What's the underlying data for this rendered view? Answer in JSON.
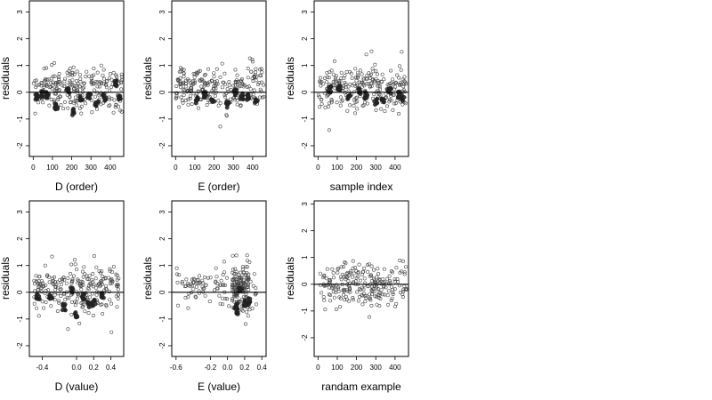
{
  "figure": {
    "ylabel": "residuals",
    "colors": {
      "frame": "#000000",
      "point_stroke": "#444444",
      "dark_point": "#222222",
      "background": "#ffffff"
    }
  },
  "chart_data": [
    {
      "type": "scatter",
      "xlabel": "D (order)",
      "ylabel": "residuals",
      "xlim": [
        -20,
        470
      ],
      "ylim": [
        -2.4,
        3.45
      ],
      "xticks": [
        0,
        100,
        200,
        300,
        400
      ],
      "xtick_labels": [
        "0",
        "100",
        "200",
        "300",
        "400"
      ],
      "yticks": [
        -2,
        -1,
        0,
        1,
        2,
        3
      ],
      "ytick_labels": [
        "-2",
        "-1",
        "0",
        "1",
        "2",
        "3"
      ],
      "hline": 0,
      "grid": false,
      "legend": "none",
      "point_style": "open circles with dark filled clusters",
      "highlight_points": [
        [
          20,
          -0.15
        ],
        [
          50,
          -0.1
        ],
        [
          75,
          -0.12
        ],
        [
          120,
          -0.55
        ],
        [
          180,
          0.05
        ],
        [
          210,
          -0.75
        ],
        [
          250,
          -0.2
        ],
        [
          290,
          -0.2
        ],
        [
          330,
          -0.45
        ],
        [
          370,
          -0.2
        ],
        [
          430,
          0.35
        ],
        [
          450,
          -0.15
        ]
      ]
    },
    {
      "type": "scatter",
      "xlabel": "E (order)",
      "ylabel": "residuals",
      "xlim": [
        -20,
        470
      ],
      "ylim": [
        -2.4,
        3.45
      ],
      "xticks": [
        0,
        100,
        200,
        300,
        400
      ],
      "xtick_labels": [
        "0",
        "100",
        "200",
        "300",
        "400"
      ],
      "yticks": [
        -2,
        -1,
        0,
        1,
        2,
        3
      ],
      "ytick_labels": [
        "-2",
        "-1",
        "0",
        "1",
        "2",
        "3"
      ],
      "hline": 0,
      "grid": false,
      "legend": "none",
      "point_style": "open circles with dark filled clusters",
      "highlight_points": [
        [
          110,
          -0.3
        ],
        [
          150,
          -0.1
        ],
        [
          195,
          -0.25
        ],
        [
          270,
          -0.45
        ],
        [
          310,
          0.0
        ],
        [
          345,
          -0.15
        ],
        [
          375,
          -0.2
        ],
        [
          420,
          -0.3
        ]
      ]
    },
    {
      "type": "scatter",
      "xlabel": "sample index",
      "ylabel": "residuals",
      "xlim": [
        -20,
        470
      ],
      "ylim": [
        -2.4,
        3.45
      ],
      "xticks": [
        0,
        100,
        200,
        300,
        400
      ],
      "xtick_labels": [
        "0",
        "100",
        "200",
        "300",
        "400"
      ],
      "yticks": [
        -2,
        -1,
        0,
        1,
        2,
        3
      ],
      "ytick_labels": [
        "-2",
        "-1",
        "0",
        "1",
        "2",
        "3"
      ],
      "hline": 0,
      "grid": false,
      "legend": "none",
      "point_style": "open circles with dark filled clusters",
      "highlight_points": [
        [
          60,
          0.1
        ],
        [
          110,
          0.15
        ],
        [
          160,
          -0.15
        ],
        [
          215,
          0.05
        ],
        [
          250,
          -0.1
        ],
        [
          300,
          -0.35
        ],
        [
          335,
          -0.3
        ],
        [
          370,
          0.05
        ],
        [
          420,
          -0.1
        ],
        [
          440,
          -0.2
        ]
      ]
    },
    {
      "type": "scatter",
      "xlabel": "D (value)",
      "ylabel": "residuals",
      "xlim": [
        -0.55,
        0.55
      ],
      "ylim": [
        -2.4,
        3.45
      ],
      "xticks": [
        -0.4,
        0.0,
        0.2,
        0.4
      ],
      "xtick_labels": [
        "-0.4",
        "0.0",
        "0.2",
        "0.4"
      ],
      "yticks": [
        -2,
        -1,
        0,
        1,
        2,
        3
      ],
      "ytick_labels": [
        "-2",
        "-1",
        "0",
        "1",
        "2",
        "3"
      ],
      "hline": 0,
      "grid": false,
      "legend": "none",
      "point_style": "open circles with dark filled clusters",
      "highlight_points": [
        [
          -0.45,
          -0.15
        ],
        [
          -0.3,
          -0.2
        ],
        [
          -0.15,
          -0.55
        ],
        [
          -0.05,
          0.05
        ],
        [
          0.0,
          -0.85
        ],
        [
          0.08,
          -0.15
        ],
        [
          0.15,
          -0.45
        ],
        [
          0.2,
          -0.4
        ],
        [
          0.3,
          -0.1
        ]
      ]
    },
    {
      "type": "scatter",
      "xlabel": "E (value)",
      "ylabel": "residuals",
      "xlim": [
        -0.65,
        0.45
      ],
      "ylim": [
        -2.4,
        3.45
      ],
      "xticks": [
        -0.6,
        -0.2,
        0.0,
        0.2,
        0.4
      ],
      "xtick_labels": [
        "-0.6",
        "-0.2",
        "0.0",
        "0.2",
        "0.4"
      ],
      "yticks": [
        -2,
        -1,
        0,
        1,
        2,
        3
      ],
      "ytick_labels": [
        "-2",
        "-1",
        "0",
        "1",
        "2",
        "3"
      ],
      "hline": 0,
      "grid": false,
      "legend": "none",
      "point_style": "open circles with dark filled clusters",
      "highlight_points": [
        [
          0.1,
          -0.55
        ],
        [
          0.12,
          -0.7
        ],
        [
          0.15,
          0.05
        ],
        [
          0.2,
          -0.4
        ],
        [
          0.25,
          -0.35
        ]
      ]
    },
    {
      "type": "scatter",
      "xlabel": "randam example",
      "ylabel": "residuals",
      "xlim": [
        -20,
        470
      ],
      "ylim": [
        -2.7,
        3.15
      ],
      "xticks": [
        0,
        100,
        200,
        300,
        400
      ],
      "xtick_labels": [
        "0",
        "100",
        "200",
        "300",
        "400"
      ],
      "yticks": [
        -2,
        -1,
        0,
        1,
        2,
        3
      ],
      "ytick_labels": [
        "-2",
        "-1",
        "0",
        "1",
        "2",
        "3"
      ],
      "hline": 0,
      "grid": false,
      "legend": "none",
      "point_style": "open circles",
      "highlight_points": []
    }
  ]
}
